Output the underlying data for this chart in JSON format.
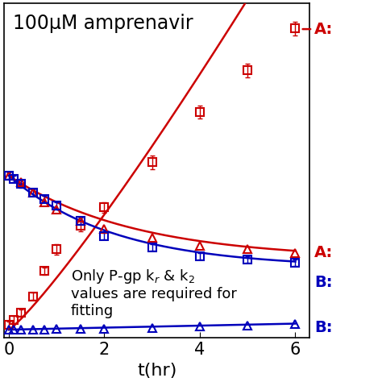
{
  "title": "100μM amprenavir",
  "xlabel": "t(hr)",
  "annotation_line1": "Only P-gp k",
  "annotation_line1_sub": "r",
  "annotation_rest": " & k",
  "annotation_sub2": "2",
  "annotation_line2": "values are required for",
  "annotation_line3": "fitting",
  "red_square_x": [
    0.0,
    0.1,
    0.25,
    0.5,
    0.75,
    1.0,
    1.5,
    2.0,
    3.0,
    4.0,
    5.0,
    6.0
  ],
  "red_square_y": [
    0.03,
    0.06,
    0.1,
    0.2,
    0.35,
    0.48,
    0.62,
    0.73,
    1.0,
    1.3,
    1.55,
    1.8
  ],
  "red_square_yerr": [
    0.02,
    0.02,
    0.02,
    0.02,
    0.02,
    0.03,
    0.03,
    0.03,
    0.04,
    0.04,
    0.04,
    0.04
  ],
  "red_triangle_x": [
    0.0,
    0.25,
    0.5,
    0.75,
    1.0,
    1.5,
    2.0,
    3.0,
    4.0,
    5.0,
    6.0
  ],
  "red_triangle_y": [
    0.92,
    0.88,
    0.82,
    0.76,
    0.72,
    0.65,
    0.6,
    0.55,
    0.5,
    0.48,
    0.46
  ],
  "blue_square_x": [
    0.0,
    0.1,
    0.25,
    0.5,
    0.75,
    1.0,
    1.5,
    2.0,
    3.0,
    4.0,
    5.0,
    6.0
  ],
  "blue_square_y": [
    0.92,
    0.9,
    0.87,
    0.82,
    0.78,
    0.74,
    0.65,
    0.56,
    0.49,
    0.44,
    0.42,
    0.4
  ],
  "blue_square_yerr": [
    0.02,
    0.02,
    0.02,
    0.02,
    0.02,
    0.02,
    0.02,
    0.02,
    0.02,
    0.02,
    0.02,
    0.02
  ],
  "blue_triangle_x": [
    0.0,
    0.1,
    0.25,
    0.5,
    0.75,
    1.0,
    1.5,
    2.0,
    3.0,
    4.0,
    5.0,
    6.0
  ],
  "blue_triangle_y": [
    0.0,
    0.002,
    0.002,
    0.002,
    0.002,
    0.003,
    0.004,
    0.007,
    0.012,
    0.018,
    0.025,
    0.032
  ],
  "red_color": "#cc0000",
  "blue_color": "#0000bb",
  "bg_color": "#ffffff",
  "xticks": [
    0,
    2,
    4,
    6
  ],
  "yticks": [],
  "xlim": [
    -0.1,
    6.3
  ],
  "ylim": [
    -0.05,
    1.95
  ],
  "tick_fontsize": 15,
  "label_fontsize": 16,
  "title_fontsize": 17,
  "annot_fontsize": 13,
  "label_fontsize_side": 14,
  "ms": 7,
  "lw": 1.8
}
